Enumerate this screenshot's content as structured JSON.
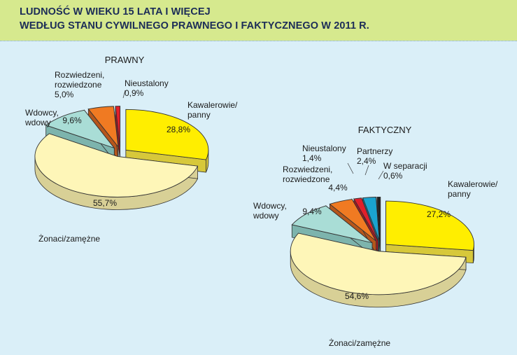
{
  "header": {
    "title_line1": "LUDNOŚĆ W WIEKU 15 LATA I WIĘCEJ",
    "title_line2": "WEDŁUG STANU CYWILNEGO PRAWNEGO I FAKTYCZNEGO W 2011 R."
  },
  "chart_data": [
    {
      "type": "pie",
      "title": "PRAWNY",
      "slices": [
        {
          "label": [
            "Kawalerowie/",
            "panny"
          ],
          "value": 28.8,
          "value_label": "28,8%",
          "color": "#ffee00",
          "side": "#d7c83a"
        },
        {
          "label": [
            "Żonaci/zamężne"
          ],
          "value": 55.7,
          "value_label": "55,7%",
          "color": "#fef6b8",
          "side": "#d8d096"
        },
        {
          "label": [
            "Wdowcy,",
            "wdowy"
          ],
          "value": 9.6,
          "value_label": "9,6%",
          "color": "#a9ddd6",
          "side": "#7db4ad"
        },
        {
          "label": [
            "Rozwiedzeni,",
            "rozwiedzone"
          ],
          "value": 5.0,
          "value_label": "5,0%",
          "color": "#f07a22",
          "side": "#b6561b"
        },
        {
          "label": [
            "Nieustalony"
          ],
          "value": 0.9,
          "value_label": "0,9%",
          "color": "#e11f2b",
          "side": "#a8151f"
        }
      ]
    },
    {
      "type": "pie",
      "title": "FAKTYCZNY",
      "slices": [
        {
          "label": [
            "Kawalerowie/",
            "panny"
          ],
          "value": 27.2,
          "value_label": "27,2%",
          "color": "#ffee00",
          "side": "#d7c83a"
        },
        {
          "label": [
            "Żonaci/zamężne"
          ],
          "value": 54.6,
          "value_label": "54,6%",
          "color": "#fef6b8",
          "side": "#d8d096"
        },
        {
          "label": [
            "Wdowcy,",
            "wdowy"
          ],
          "value": 9.4,
          "value_label": "9,4%",
          "color": "#a9ddd6",
          "side": "#7db4ad"
        },
        {
          "label": [
            "Rozwiedzeni,",
            "rozwiedzone"
          ],
          "value": 4.4,
          "value_label": "4,4%",
          "color": "#f07a22",
          "side": "#b6561b"
        },
        {
          "label": [
            "Nieustalony"
          ],
          "value": 1.4,
          "value_label": "1,4%",
          "color": "#e11f2b",
          "side": "#a8151f"
        },
        {
          "label": [
            "Partnerzy"
          ],
          "value": 2.4,
          "value_label": "2,4%",
          "color": "#1aa3cf",
          "side": "#137798"
        },
        {
          "label": [
            "W separacji"
          ],
          "value": 0.6,
          "value_label": "0,6%",
          "color": "#222222",
          "side": "#000000"
        }
      ]
    }
  ]
}
